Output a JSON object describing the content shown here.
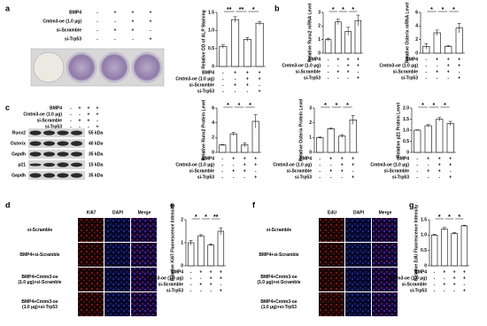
{
  "panel_labels": [
    "a",
    "b",
    "c",
    "d",
    "e",
    "f",
    "g"
  ],
  "conditions": {
    "rows": [
      {
        "label": "BMP4",
        "signs": [
          "-",
          "+",
          "+",
          "+"
        ]
      },
      {
        "label": "Cmtm3-oe (1.0 μg)",
        "signs": [
          "-",
          "-",
          "+",
          "+"
        ]
      },
      {
        "label": "si-Scramble",
        "signs": [
          "-",
          "+",
          "+",
          "-"
        ]
      },
      {
        "label": "si-Trp53",
        "signs": [
          "-",
          "-",
          "-",
          "+"
        ]
      }
    ]
  },
  "blot": {
    "proteins": [
      "Runx2",
      "Osterix",
      "Gapdh",
      "p21",
      "Gapdh"
    ],
    "sizes": [
      "55 kDa",
      "40 kDa",
      "35 kDa",
      "15 kDa",
      "35 kDa"
    ]
  },
  "fluorescence": [
    {
      "columns": [
        "Ki67",
        "DAPI",
        "Merge"
      ],
      "rows": [
        [
          "si-Scramble"
        ],
        [
          "BMP4+si-Scramble"
        ],
        [
          "BMP4+Cmtm3-oe",
          "(1.0 μg)+si-Scramble"
        ],
        [
          "BMP4+Cmtm3-oe",
          "(1.0 μg)+si-Trp53"
        ]
      ]
    },
    {
      "columns": [
        "EdU",
        "DAPI",
        "Merge"
      ],
      "rows": [
        [
          "si-Scramble"
        ],
        [
          "BMP4+si-Scramble"
        ],
        [
          "BMP4+Cmtm3-oe",
          "(1.0 μg)+si-Scramble"
        ],
        [
          "BMP4+Cmtm3-oe",
          "(1.0 μg)+si-Trp53"
        ]
      ]
    }
  ],
  "chart_data": [
    {
      "type": "bar",
      "y_label": "Relative OD of ALP Staining",
      "values": [
        0.55,
        1.3,
        0.75,
        1.2
      ],
      "errors": [
        0.05,
        0.08,
        0.05,
        0.05
      ],
      "ylim": [
        0,
        1.5
      ],
      "yticks": [
        0,
        0.5,
        {
          "value": 1,
          "label": "1.0"
        },
        1.5
      ],
      "color": "#ffffff",
      "significance": [
        "**",
        "**",
        "*"
      ]
    },
    {
      "type": "bar",
      "y_label": "Relative Runx2 mRNA Level",
      "values": [
        1.0,
        2.3,
        1.6,
        2.4
      ],
      "errors": [
        0.1,
        0.2,
        0.3,
        0.4
      ],
      "ylim": [
        0,
        3
      ],
      "yticks": [
        0,
        1,
        2,
        3
      ],
      "color": "#ffffff",
      "significance": [
        "*",
        "*",
        "*"
      ]
    },
    {
      "type": "bar",
      "y_label": "Relative Osterix mRNA Level",
      "values": [
        1.0,
        3.0,
        1.0,
        3.7
      ],
      "errors": [
        0.4,
        0.4,
        0.1,
        0.7
      ],
      "ylim": [
        0,
        6
      ],
      "yticks": [
        0,
        2,
        4,
        6
      ],
      "color": "#ffffff",
      "significance": [
        "*",
        "*",
        "*"
      ]
    },
    {
      "type": "bar",
      "y_label": "Relative Runx2 Protein Level",
      "values": [
        1.0,
        2.5,
        1.0,
        4.2
      ],
      "errors": [
        0.05,
        0.2,
        0.3,
        0.9
      ],
      "ylim": [
        0,
        6
      ],
      "yticks": [
        0,
        2,
        4,
        6
      ],
      "color": "#ffffff",
      "significance": [
        "*",
        "*",
        "*"
      ]
    },
    {
      "type": "bar",
      "y_label": "Relative Osterix Protein Level",
      "values": [
        1.0,
        1.6,
        1.1,
        2.2
      ],
      "errors": [
        0.05,
        0.05,
        0.1,
        0.3
      ],
      "ylim": [
        0,
        3
      ],
      "yticks": [
        0,
        1,
        2,
        3
      ],
      "color": "#ffffff",
      "significance": [
        "*",
        "*",
        "*"
      ]
    },
    {
      "type": "bar",
      "y_label": "Relative p21 Protein Level",
      "values": [
        1.0,
        1.2,
        1.5,
        1.3
      ],
      "errors": [
        0.02,
        0.05,
        0.08,
        0.1
      ],
      "ylim": [
        0,
        2
      ],
      "yticks": [
        0,
        0.5,
        {
          "value": 1,
          "label": "1.0"
        },
        1.5,
        {
          "value": 2,
          "label": "2.0"
        }
      ],
      "color": "#ffffff",
      "significance": [
        "*",
        "*",
        "*"
      ]
    },
    {
      "type": "bar",
      "y_label": "Relative Ki67 Fluorescence Intensity",
      "values": [
        1.0,
        1.3,
        0.9,
        1.5
      ],
      "errors": [
        0.1,
        0.05,
        0.05,
        0.15
      ],
      "ylim": [
        0,
        2
      ],
      "yticks": [
        0,
        1,
        2
      ],
      "color": "#ffffff",
      "significance": [
        "*",
        "*",
        "**"
      ]
    },
    {
      "type": "bar",
      "y_label": "Relative EdU Fluorescence Intensity",
      "values": [
        1.0,
        1.2,
        1.05,
        1.3
      ],
      "errors": [
        0.03,
        0.05,
        0.03,
        0.02
      ],
      "ylim": [
        0,
        1.5
      ],
      "yticks": [
        0,
        0.5,
        {
          "value": 1,
          "label": "1.0"
        },
        1.5
      ],
      "color": "#ffffff",
      "significance": [
        "*",
        "*",
        "*"
      ]
    }
  ]
}
